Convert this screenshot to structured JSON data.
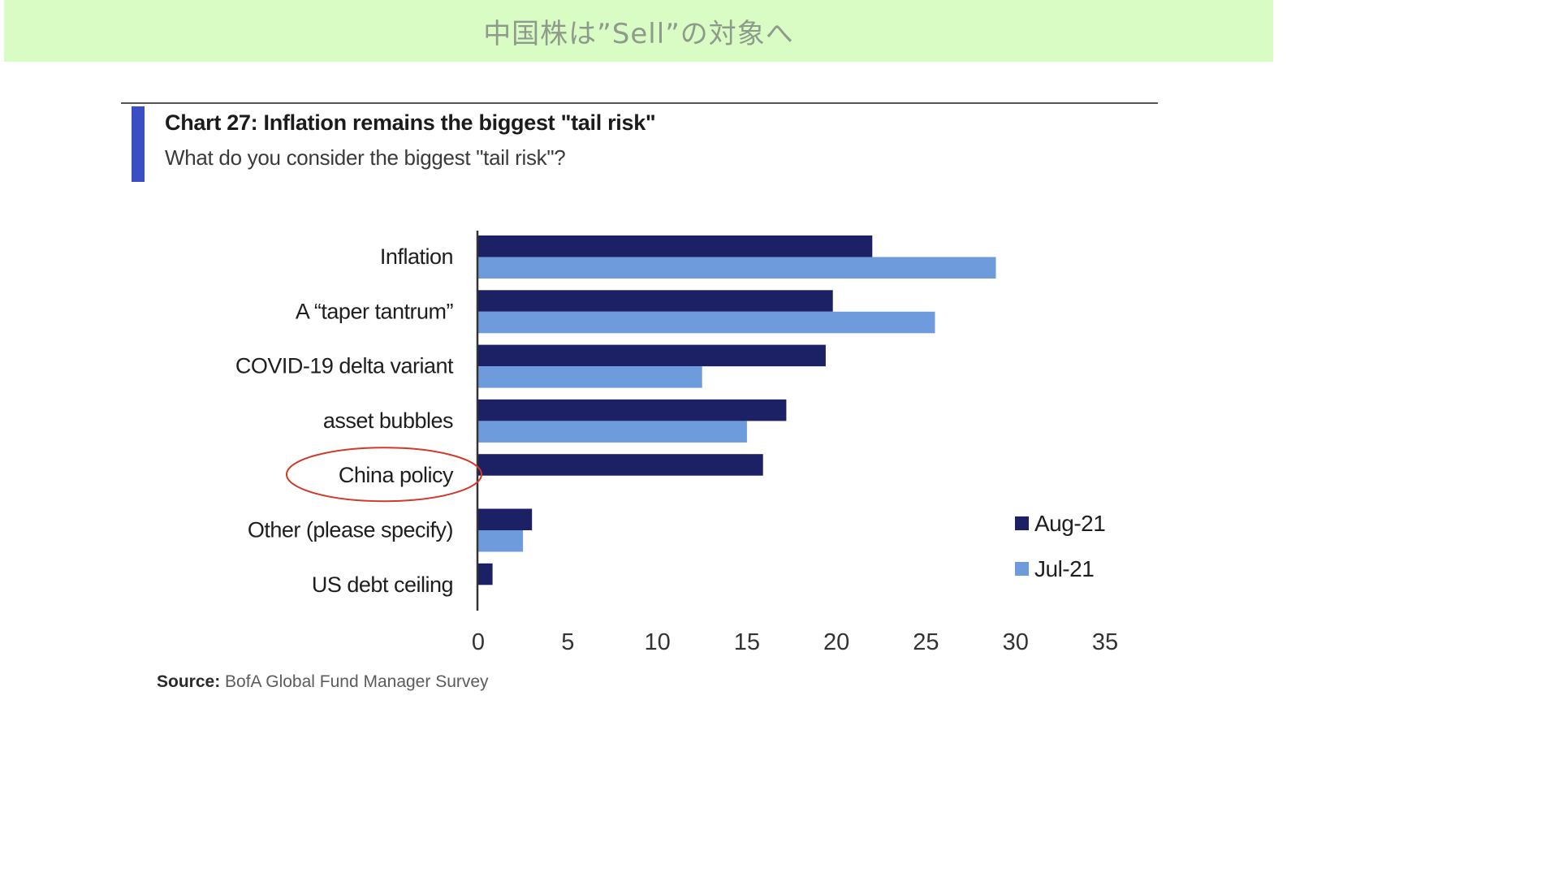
{
  "banner": {
    "title": "中国株は”Sell”の対象へ"
  },
  "colors": {
    "banner_bg": "#d9fcc4",
    "accent": "#3b4fc4",
    "aug": "#1c2064",
    "jul": "#6e9bdb",
    "highlight_ellipse": "#d03a2a"
  },
  "source": {
    "label": "Source:",
    "text": "BofA Global Fund Manager Survey"
  },
  "chart_data": {
    "type": "bar",
    "orientation": "horizontal",
    "title": "Chart 27: Inflation remains the biggest \"tail risk\"",
    "subtitle": "What do you consider the biggest \"tail risk\"?",
    "categories": [
      "Inflation",
      "A “taper tantrum”",
      "COVID-19 delta variant",
      "asset bubbles",
      "China policy",
      "Other (please specify)",
      "US debt ceiling"
    ],
    "series": [
      {
        "name": "Aug-21",
        "values": [
          22,
          19.8,
          19.4,
          17.2,
          15.9,
          3,
          0.8
        ]
      },
      {
        "name": "Jul-21",
        "values": [
          28.9,
          25.5,
          12.5,
          15,
          null,
          2.5,
          null
        ]
      }
    ],
    "xlim": [
      0,
      35
    ],
    "xticks": [
      "0",
      "5",
      "10",
      "15",
      "20",
      "25",
      "30",
      "35"
    ],
    "grid": false,
    "legend_position": "right",
    "highlighted_category": "China policy"
  }
}
